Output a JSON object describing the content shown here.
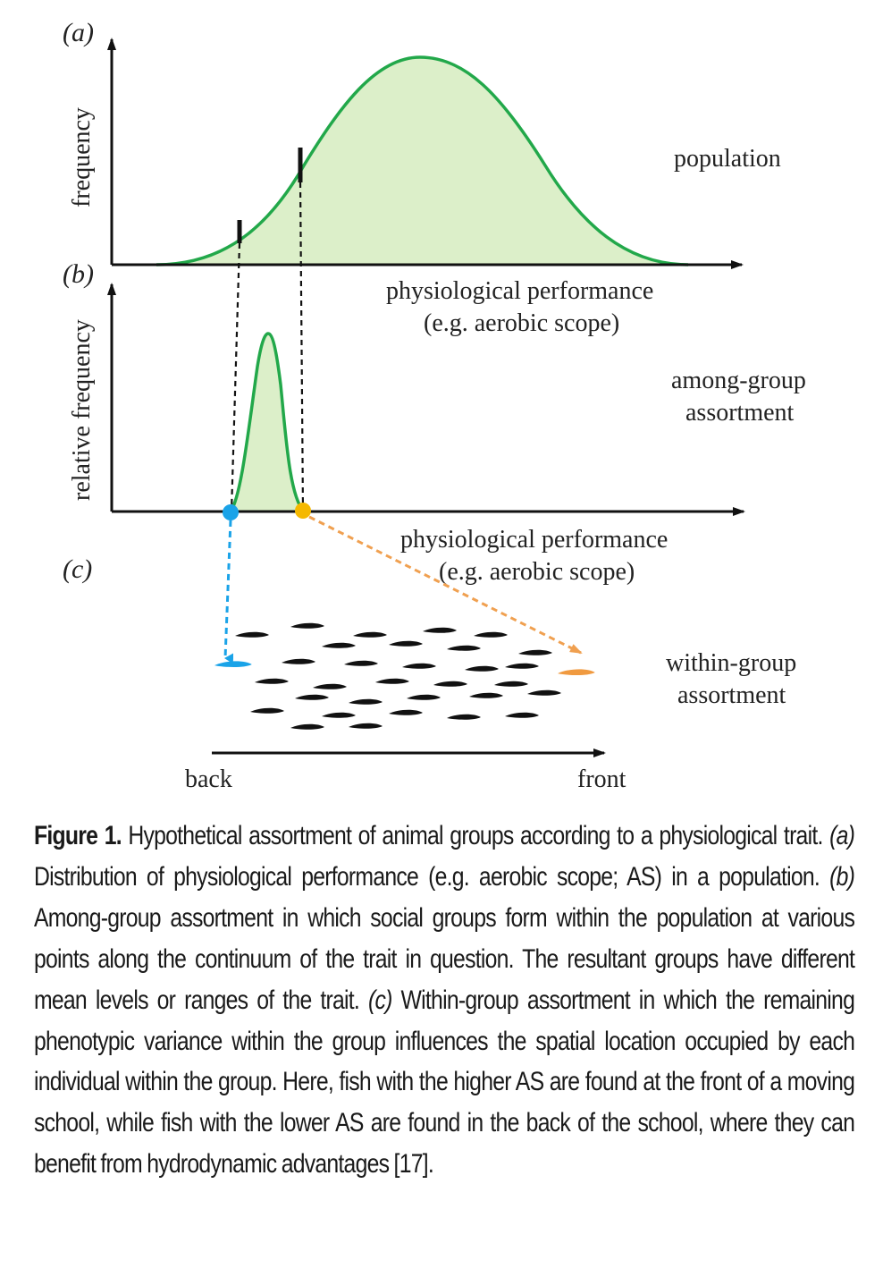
{
  "panels": {
    "a": {
      "label": "(a)",
      "ylabel": "frequency",
      "xlabel_line1": "physiological performance",
      "xlabel_line2": "(e.g. aerobic scope)",
      "side_label": "population"
    },
    "b": {
      "label": "(b)",
      "ylabel": "relative frequency",
      "xlabel_line1": "physiological performance",
      "xlabel_line2": "(e.g. aerobic scope)",
      "side_label_line1": "among-group",
      "side_label_line2": "assortment"
    },
    "c": {
      "label": "(c)",
      "side_label_line1": "within-group",
      "side_label_line2": "assortment",
      "axis_start": "back",
      "axis_end": "front"
    }
  },
  "colors": {
    "curve": "#22a84a",
    "fill": "#dcefc9",
    "low_marker": "#1aa3e8",
    "high_marker": "#f5b800",
    "orange_arrow": "#f0a050",
    "fish": "#111111",
    "front_fish": "#f09a40"
  },
  "caption": {
    "title": "Figure 1.",
    "text": " Hypothetical assortment of animal groups according to a physiological trait. ",
    "part_a_label": "(a)",
    "part_a_text": " Distribution of physiological performance (e.g. aerobic scope; AS) in a population. ",
    "part_b_label": "(b)",
    "part_b_text": " Among-group assortment in which social groups form within the population at various points along the continuum of the trait in question. The resultant groups have different mean levels or ranges of the trait. ",
    "part_c_label": "(c)",
    "part_c_text": " Within-group assortment in which the remaining phenotypic variance within the group influences the spatial location occupied by each individual within the group. Here, fish with the higher AS are found at the front of a moving school, while fish with the lower AS are found in the back of the school, where they can benefit from hydrodynamic advantages [17]."
  }
}
